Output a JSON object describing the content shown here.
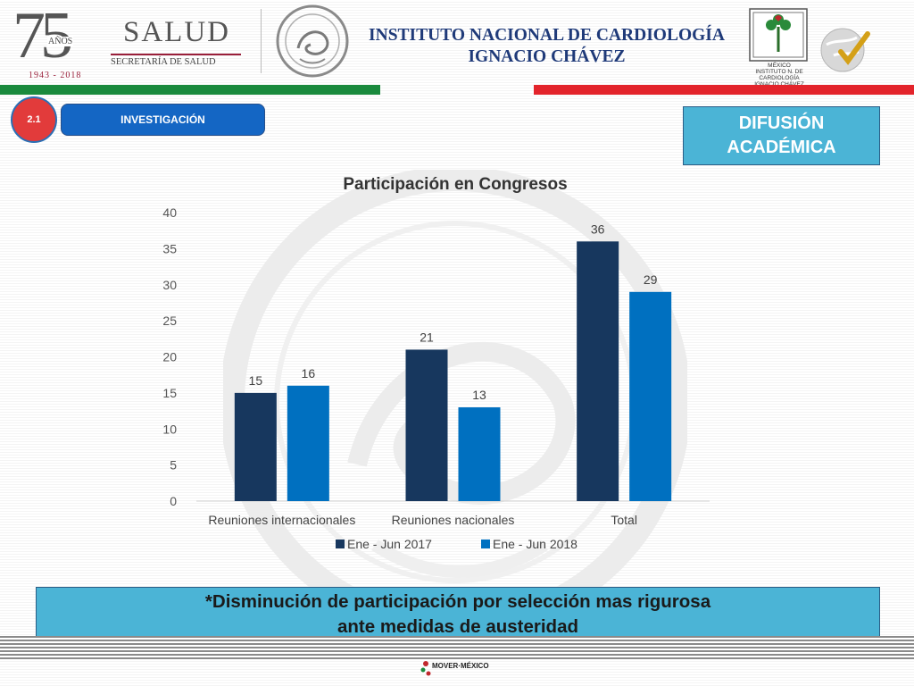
{
  "header": {
    "anniversary_number": "75",
    "anniversary_word": "AÑOS",
    "anniversary_years": "1943 - 2018",
    "salud_title": "SALUD",
    "salud_subtitle": "SECRETARÍA DE SALUD",
    "institute_line1": "INSTITUTO NACIONAL DE CARDIOLOGÍA",
    "institute_line2": "IGNACIO CHÁVEZ",
    "institute_logo_text": "MÉXICO INSTITUTO N. DE CARDIOLOGÍA IGNACIO CHÁVEZ"
  },
  "colors": {
    "green": "#1a8a3d",
    "red": "#e3242b",
    "navy_series": "#17375e",
    "blue_series": "#0070c0",
    "cyan_box": "#4bb4d6",
    "title_blue": "#1f3a79"
  },
  "section": {
    "number": "2.1",
    "name": "INVESTIGACIÓN",
    "category_line1": "DIFUSIÓN",
    "category_line2": "ACADÉMICA"
  },
  "chart_data": {
    "type": "bar",
    "title": "Participación en Congresos",
    "categories": [
      "Reuniones internacionales",
      "Reuniones nacionales",
      "Total"
    ],
    "series": [
      {
        "name": "Ene - Jun 2017",
        "values": [
          15,
          21,
          36
        ],
        "color": "#17375e"
      },
      {
        "name": "Ene - Jun 2018",
        "values": [
          16,
          13,
          29
        ],
        "color": "#0070c0"
      }
    ],
    "ylim": [
      0,
      40
    ],
    "yticks": [
      0,
      5,
      10,
      15,
      20,
      25,
      30,
      35,
      40
    ],
    "grid": false,
    "legend": "bottom"
  },
  "note": {
    "line1": "*Disminución de participación por selección mas rigurosa",
    "line2": "ante medidas de austeridad"
  },
  "footer": {
    "brand": "MOVER·MÉXICO"
  }
}
